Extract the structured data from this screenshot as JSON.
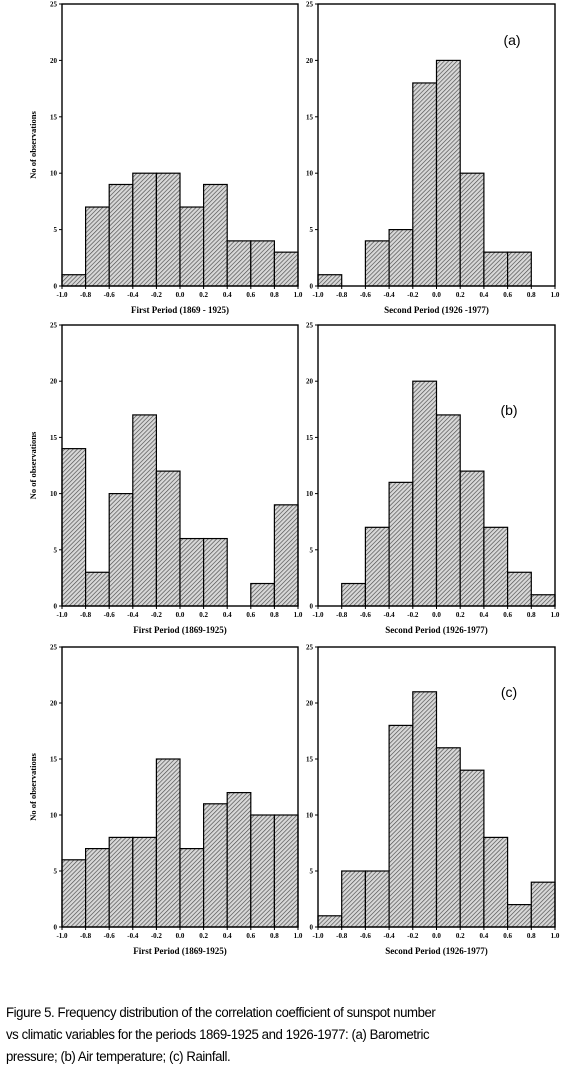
{
  "chart_data": [
    {
      "type": "bar",
      "panel": "",
      "xlabel": "First Period (1869 - 1925)",
      "ylabel": "No of observations",
      "xlim": [
        -1.0,
        1.0
      ],
      "ylim": [
        0,
        25
      ],
      "bin_edges": [
        -1.0,
        -0.8,
        -0.6,
        -0.4,
        -0.2,
        0.0,
        0.2,
        0.4,
        0.6,
        0.8,
        1.0
      ],
      "values": [
        1,
        7,
        9,
        10,
        10,
        7,
        9,
        4,
        4,
        3
      ],
      "x_tick_labels": [
        "-1.0",
        "-0.8",
        "-0.6",
        "-0.4",
        "-0.2",
        "0.0",
        "0.2",
        "0.4",
        "0.6",
        "0.8",
        "1.0"
      ],
      "y_tick_labels": [
        "0",
        "5",
        "10",
        "15",
        "20",
        "25"
      ]
    },
    {
      "type": "bar",
      "panel": "(a)",
      "xlabel": "Second Period (1926 -1977)",
      "ylabel": "",
      "xlim": [
        -1.0,
        1.0
      ],
      "ylim": [
        0,
        25
      ],
      "bin_edges": [
        -1.0,
        -0.8,
        -0.6,
        -0.4,
        -0.2,
        0.0,
        0.2,
        0.4,
        0.6,
        0.8,
        1.0
      ],
      "values": [
        1,
        0,
        4,
        5,
        18,
        20,
        10,
        3,
        3,
        0
      ],
      "x_tick_labels": [
        "-1.0",
        "-0.8",
        "-0.6",
        "-0.4",
        "-0.2",
        "0.0",
        "0.2",
        "0.4",
        "0.6",
        "0.8",
        "1.0"
      ],
      "y_tick_labels": [
        "0",
        "5",
        "10",
        "15",
        "20",
        "25"
      ]
    },
    {
      "type": "bar",
      "panel": "",
      "xlabel": "First Period (1869-1925)",
      "ylabel": "No of observations",
      "xlim": [
        -1.0,
        1.0
      ],
      "ylim": [
        0,
        25
      ],
      "bin_edges": [
        -1.0,
        -0.8,
        -0.6,
        -0.4,
        -0.2,
        0.0,
        0.2,
        0.4,
        0.6,
        0.8,
        1.0
      ],
      "values": [
        14,
        3,
        10,
        17,
        12,
        6,
        6,
        0,
        2,
        9
      ],
      "x_tick_labels": [
        "-1.0",
        "-0.8",
        "-0.6",
        "-0.4",
        "-0.2",
        "0.0",
        "0.2",
        "0.4",
        "0.6",
        "0.8",
        "1.0"
      ],
      "y_tick_labels": [
        "0",
        "5",
        "10",
        "15",
        "20",
        "25"
      ]
    },
    {
      "type": "bar",
      "panel": "(b)",
      "xlabel": "Second Period (1926-1977)",
      "ylabel": "",
      "xlim": [
        -1.0,
        1.0
      ],
      "ylim": [
        0,
        25
      ],
      "bin_edges": [
        -1.0,
        -0.8,
        -0.6,
        -0.4,
        -0.2,
        0.0,
        0.2,
        0.4,
        0.6,
        0.8,
        1.0
      ],
      "values": [
        0,
        2,
        7,
        11,
        20,
        17,
        12,
        7,
        3,
        1
      ],
      "x_tick_labels": [
        "-1.0",
        "-0.8",
        "-0.6",
        "-0.4",
        "-0.2",
        "0.0",
        "0.2",
        "0.4",
        "0.6",
        "0.8",
        "1.0"
      ],
      "y_tick_labels": [
        "0",
        "5",
        "10",
        "15",
        "20",
        "25"
      ]
    },
    {
      "type": "bar",
      "panel": "",
      "xlabel": "First Period (1869-1925)",
      "ylabel": "No of observations",
      "xlim": [
        -1.0,
        1.0
      ],
      "ylim": [
        0,
        25
      ],
      "bin_edges": [
        -1.0,
        -0.8,
        -0.6,
        -0.4,
        -0.2,
        0.0,
        0.2,
        0.4,
        0.6,
        0.8,
        1.0
      ],
      "values": [
        6,
        7,
        8,
        8,
        15,
        7,
        11,
        12,
        10,
        10
      ],
      "x_tick_labels": [
        "-1.0",
        "-0.8",
        "-0.6",
        "-0.4",
        "-0.2",
        "0.0",
        "0.2",
        "0.4",
        "0.6",
        "0.8",
        "1.0"
      ],
      "y_tick_labels": [
        "0",
        "5",
        "10",
        "15",
        "20",
        "25"
      ]
    },
    {
      "type": "bar",
      "panel": "(c)",
      "xlabel": "Second Period (1926-1977)",
      "ylabel": "",
      "xlim": [
        -1.0,
        1.0
      ],
      "ylim": [
        0,
        25
      ],
      "bin_edges": [
        -1.0,
        -0.8,
        -0.6,
        -0.4,
        -0.2,
        0.0,
        0.2,
        0.4,
        0.6,
        0.8,
        1.0
      ],
      "values": [
        1,
        5,
        5,
        18,
        21,
        16,
        14,
        8,
        2,
        4
      ],
      "x_tick_labels": [
        "-1.0",
        "-0.8",
        "-0.6",
        "-0.4",
        "-0.2",
        "0.0",
        "0.2",
        "0.4",
        "0.6",
        "0.8",
        "1.0"
      ],
      "y_tick_labels": [
        "0",
        "5",
        "10",
        "15",
        "20",
        "25"
      ]
    }
  ],
  "caption": {
    "line1": "Figure 5. Frequency distribution of the correlation coefficient of sunspot number",
    "line2": "vs climatic variables for the periods 1869-1925 and 1926-1977: (a) Barometric",
    "line3": "pressure; (b) Air temperature; (c) Rainfall."
  }
}
